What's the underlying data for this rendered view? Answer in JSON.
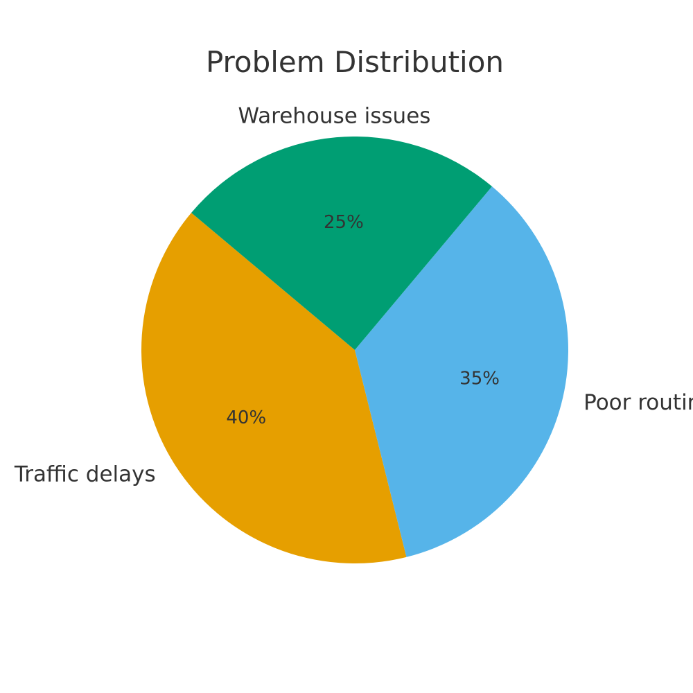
{
  "chart_data": {
    "type": "pie",
    "title": "Problem Distribution",
    "categories": [
      "Traffic delays",
      "Poor routing",
      "Warehouse issues"
    ],
    "values": [
      40,
      35,
      25
    ],
    "value_labels": [
      "40%",
      "35%",
      "25%"
    ],
    "colors": [
      "#E69F00",
      "#56B4E9",
      "#009E73"
    ],
    "start_angle_deg": 140,
    "direction": "counterclockwise",
    "legend": "none"
  }
}
